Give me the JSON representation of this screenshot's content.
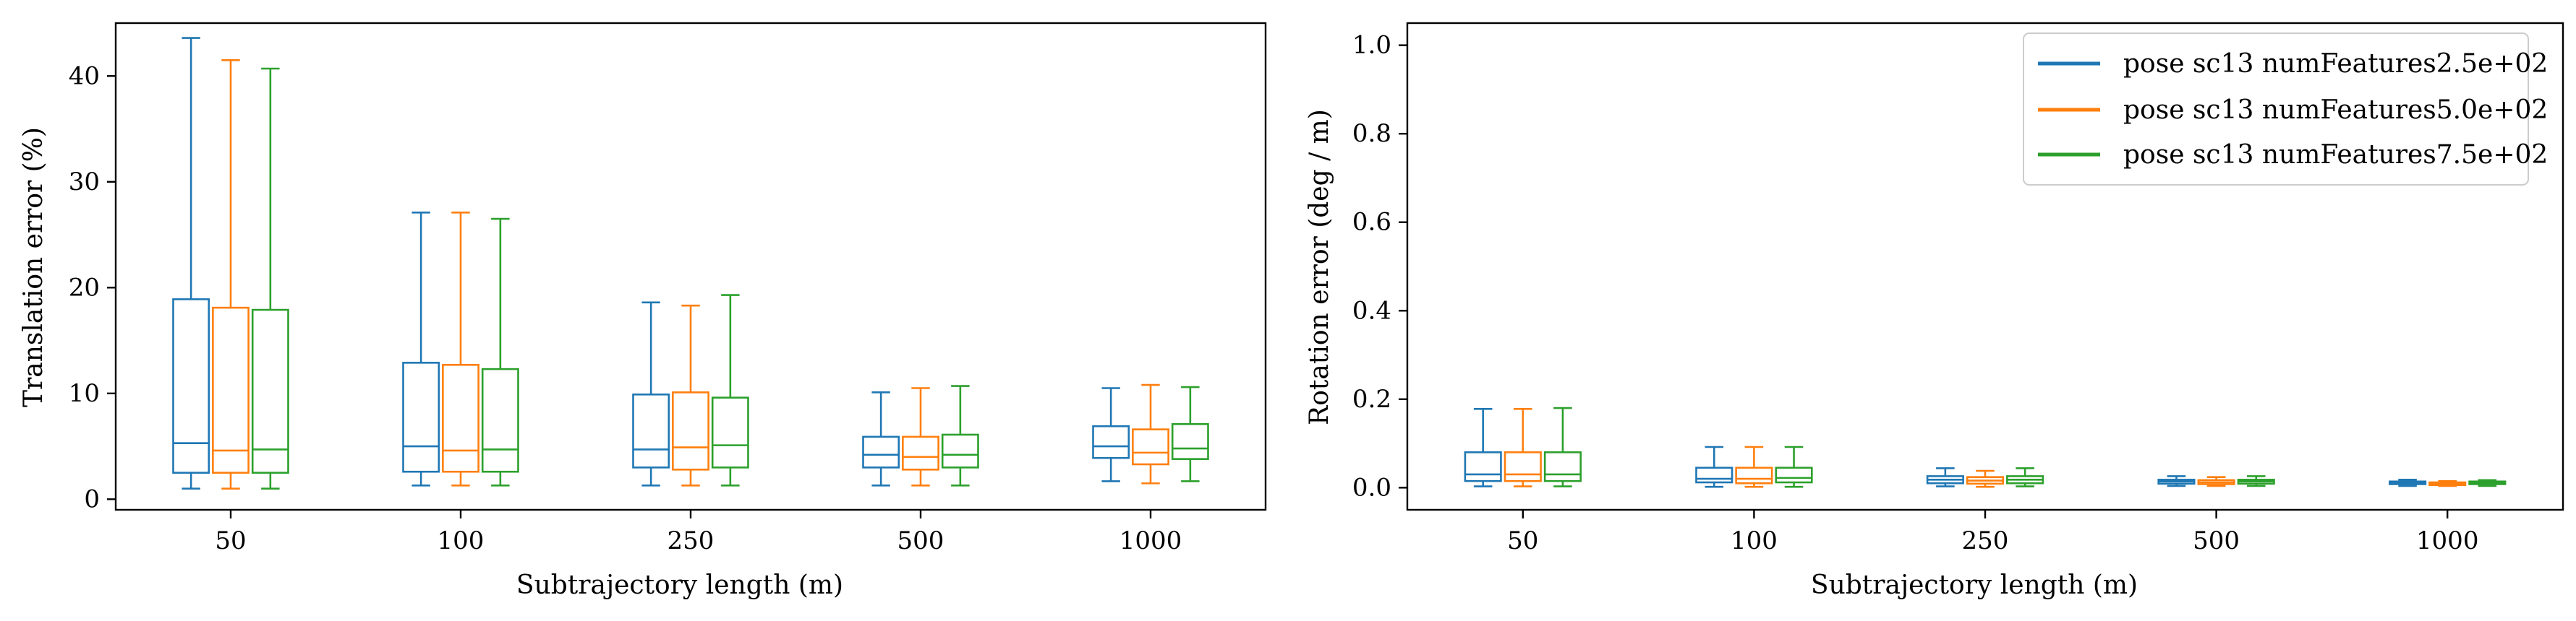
{
  "chart_data": [
    {
      "type": "box",
      "xlabel": "Subtrajectory length (m)",
      "ylabel": "Translation error (%)",
      "categories": [
        "50",
        "100",
        "250",
        "500",
        "1000"
      ],
      "ylim": [
        -1,
        45
      ],
      "yticks": [
        0,
        10,
        20,
        30,
        40
      ],
      "grid": false,
      "series": [
        {
          "name": "pose sc13 numFeatures2.5e+02",
          "color": "#1f77b4",
          "boxes": [
            {
              "whislo": 1.0,
              "q1": 2.5,
              "med": 5.3,
              "q3": 18.9,
              "whishi": 43.6
            },
            {
              "whislo": 1.3,
              "q1": 2.6,
              "med": 5.0,
              "q3": 12.9,
              "whishi": 27.1
            },
            {
              "whislo": 1.3,
              "q1": 3.0,
              "med": 4.7,
              "q3": 9.9,
              "whishi": 18.6
            },
            {
              "whislo": 1.3,
              "q1": 3.0,
              "med": 4.2,
              "q3": 5.9,
              "whishi": 10.1
            },
            {
              "whislo": 1.7,
              "q1": 3.9,
              "med": 5.0,
              "q3": 6.9,
              "whishi": 10.5
            }
          ]
        },
        {
          "name": "pose sc13 numFeatures5.0e+02",
          "color": "#ff7f0e",
          "boxes": [
            {
              "whislo": 1.0,
              "q1": 2.5,
              "med": 4.6,
              "q3": 18.1,
              "whishi": 41.5
            },
            {
              "whislo": 1.3,
              "q1": 2.6,
              "med": 4.6,
              "q3": 12.7,
              "whishi": 27.1
            },
            {
              "whislo": 1.3,
              "q1": 2.8,
              "med": 4.9,
              "q3": 10.1,
              "whishi": 18.3
            },
            {
              "whislo": 1.3,
              "q1": 2.8,
              "med": 4.0,
              "q3": 5.9,
              "whishi": 10.5
            },
            {
              "whislo": 1.5,
              "q1": 3.3,
              "med": 4.4,
              "q3": 6.6,
              "whishi": 10.8
            }
          ]
        },
        {
          "name": "pose sc13 numFeatures7.5e+02",
          "color": "#2ca02c",
          "boxes": [
            {
              "whislo": 1.0,
              "q1": 2.5,
              "med": 4.7,
              "q3": 17.9,
              "whishi": 40.7
            },
            {
              "whislo": 1.3,
              "q1": 2.6,
              "med": 4.7,
              "q3": 12.3,
              "whishi": 26.5
            },
            {
              "whislo": 1.3,
              "q1": 3.0,
              "med": 5.1,
              "q3": 9.6,
              "whishi": 19.3
            },
            {
              "whislo": 1.3,
              "q1": 3.0,
              "med": 4.2,
              "q3": 6.1,
              "whishi": 10.7
            },
            {
              "whislo": 1.7,
              "q1": 3.8,
              "med": 4.8,
              "q3": 7.1,
              "whishi": 10.6
            }
          ]
        }
      ]
    },
    {
      "type": "box",
      "xlabel": "Subtrajectory length (m)",
      "ylabel": "Rotation error (deg / m)",
      "categories": [
        "50",
        "100",
        "250",
        "500",
        "1000"
      ],
      "ylim": [
        -0.05,
        1.05
      ],
      "yticks": [
        "0.0",
        "0.2",
        "0.4",
        "0.6",
        "0.8",
        "1.0"
      ],
      "grid": false,
      "legend": "top-right",
      "series": [
        {
          "name": "pose sc13 numFeatures2.5e+02",
          "color": "#1f77b4",
          "boxes": [
            {
              "whislo": 0.003,
              "q1": 0.015,
              "med": 0.03,
              "q3": 0.08,
              "whishi": 0.178
            },
            {
              "whislo": 0.002,
              "q1": 0.012,
              "med": 0.02,
              "q3": 0.045,
              "whishi": 0.092
            },
            {
              "whislo": 0.003,
              "q1": 0.01,
              "med": 0.018,
              "q3": 0.026,
              "whishi": 0.044
            },
            {
              "whislo": 0.004,
              "q1": 0.009,
              "med": 0.014,
              "q3": 0.018,
              "whishi": 0.026
            },
            {
              "whislo": 0.004,
              "q1": 0.008,
              "med": 0.011,
              "q3": 0.014,
              "whishi": 0.018
            }
          ]
        },
        {
          "name": "pose sc13 numFeatures5.0e+02",
          "color": "#ff7f0e",
          "boxes": [
            {
              "whislo": 0.003,
              "q1": 0.015,
              "med": 0.03,
              "q3": 0.08,
              "whishi": 0.178
            },
            {
              "whislo": 0.002,
              "q1": 0.01,
              "med": 0.02,
              "q3": 0.045,
              "whishi": 0.092
            },
            {
              "whislo": 0.002,
              "q1": 0.009,
              "med": 0.016,
              "q3": 0.024,
              "whishi": 0.038
            },
            {
              "whislo": 0.004,
              "q1": 0.008,
              "med": 0.012,
              "q3": 0.017,
              "whishi": 0.024
            },
            {
              "whislo": 0.004,
              "q1": 0.006,
              "med": 0.009,
              "q3": 0.012,
              "whishi": 0.015
            }
          ]
        },
        {
          "name": "pose sc13 numFeatures7.5e+02",
          "color": "#2ca02c",
          "boxes": [
            {
              "whislo": 0.003,
              "q1": 0.015,
              "med": 0.03,
              "q3": 0.08,
              "whishi": 0.18
            },
            {
              "whislo": 0.002,
              "q1": 0.012,
              "med": 0.022,
              "q3": 0.045,
              "whishi": 0.092
            },
            {
              "whislo": 0.003,
              "q1": 0.01,
              "med": 0.018,
              "q3": 0.026,
              "whishi": 0.044
            },
            {
              "whislo": 0.004,
              "q1": 0.009,
              "med": 0.014,
              "q3": 0.018,
              "whishi": 0.026
            },
            {
              "whislo": 0.004,
              "q1": 0.008,
              "med": 0.011,
              "q3": 0.014,
              "whishi": 0.017
            }
          ]
        }
      ]
    }
  ]
}
